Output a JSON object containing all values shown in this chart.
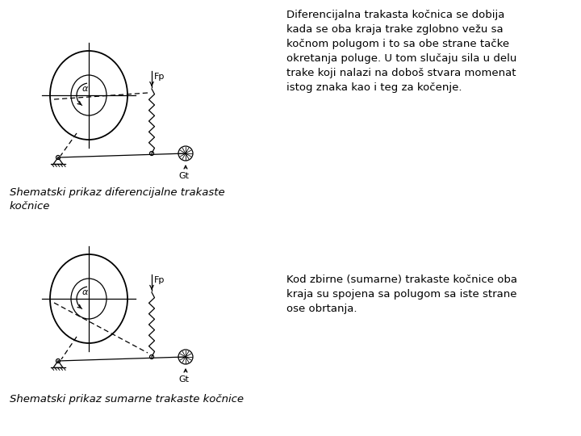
{
  "bg_color": "#ffffff",
  "text1": "Diferencijalna trakasta kočnica se dobija\nkada se oba kraja trake zglobno vežu sa\nkočnom polugom i to sa obe strane tačke\nokretanja poluge. U tom slučaju sila u delu\ntrake koji nalazi na doboš stvara momenat\nistog znaka kao i teg za kočenje.",
  "text2": "Kod zbirne (sumarne) trakaste kočnice oba\nkraja su spojena sa polugom sa iste strane\nose obrtanja.",
  "caption1": "Shematski prikaz diferencijalne trakaste\nkočnice",
  "caption2": "Shematski prikaz sumarne trakaste kočnice",
  "label_alpha": "α",
  "label_Fp": "Fp",
  "label_Gt": "Gt",
  "text_fontsize": 9.5,
  "caption_fontsize": 9.5,
  "label_fontsize": 8
}
